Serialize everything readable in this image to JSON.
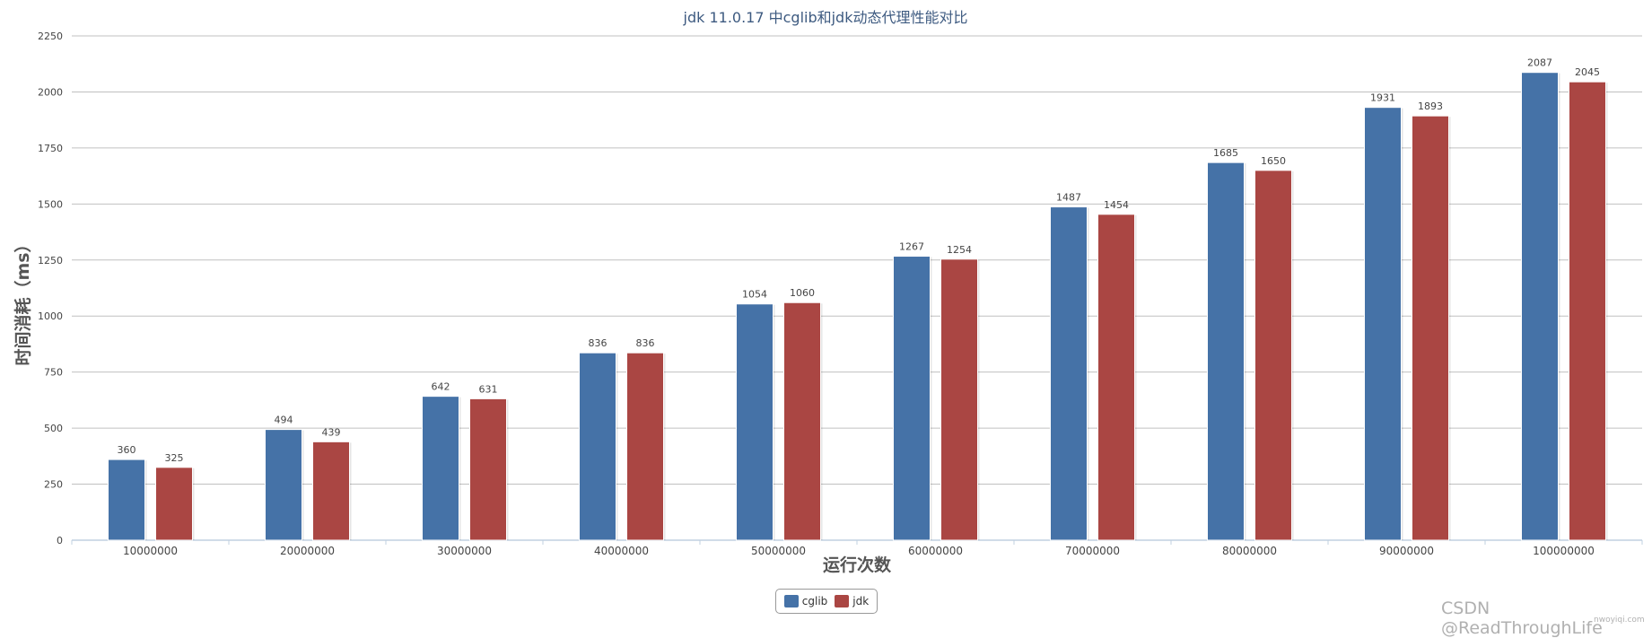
{
  "chart_data": {
    "type": "bar",
    "title": "jdk 11.0.17 中cglib和jdk动态代理性能对比",
    "xlabel": "运行次数",
    "ylabel": "时间消耗（ms）",
    "ylim": [
      0,
      2250
    ],
    "yticks": [
      0,
      250,
      500,
      750,
      1000,
      1250,
      1500,
      1750,
      2000,
      2250
    ],
    "grid": true,
    "legend_position": "bottom-center",
    "categories": [
      "10000000",
      "20000000",
      "30000000",
      "40000000",
      "50000000",
      "60000000",
      "70000000",
      "80000000",
      "90000000",
      "100000000"
    ],
    "series": [
      {
        "name": "cglib",
        "color": "#4572a7",
        "values": [
          360,
          494,
          642,
          836,
          1054,
          1267,
          1487,
          1685,
          1931,
          2087
        ]
      },
      {
        "name": "jdk",
        "color": "#aa4643",
        "values": [
          325,
          439,
          631,
          836,
          1060,
          1254,
          1454,
          1650,
          1893,
          2045
        ]
      }
    ]
  },
  "watermark": "CSDN @ReadThroughLife",
  "watermark_sub": "nwoyiqi.com"
}
